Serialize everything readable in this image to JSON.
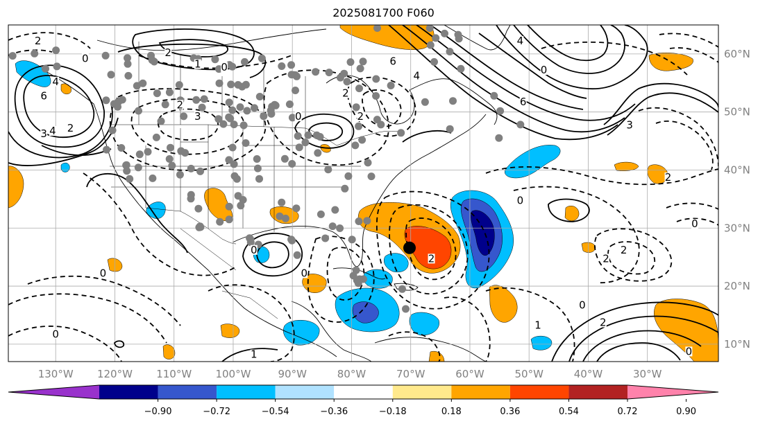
{
  "title": "2025081700 F060",
  "map": {
    "lon_range": [
      -138,
      -18
    ],
    "lat_range": [
      7,
      65
    ],
    "lon_ticks": [
      {
        "value": -130,
        "label": "130°W"
      },
      {
        "value": -120,
        "label": "120°W"
      },
      {
        "value": -110,
        "label": "110°W"
      },
      {
        "value": -100,
        "label": "100°W"
      },
      {
        "value": -90,
        "label": "90°W"
      },
      {
        "value": -80,
        "label": "80°W"
      },
      {
        "value": -70,
        "label": "70°W"
      },
      {
        "value": -60,
        "label": "60°W"
      },
      {
        "value": -50,
        "label": "50°W"
      },
      {
        "value": -40,
        "label": "40°W"
      },
      {
        "value": -30,
        "label": "30°W"
      }
    ],
    "lat_ticks": [
      {
        "value": 60,
        "label": "60°N"
      },
      {
        "value": 50,
        "label": "50°N"
      },
      {
        "value": 40,
        "label": "40°N"
      },
      {
        "value": 30,
        "label": "30°N"
      },
      {
        "value": 20,
        "label": "20°N"
      },
      {
        "value": 10,
        "label": "10°N"
      }
    ],
    "gridlines": true,
    "storm_center": {
      "lon": -70.2,
      "lat": 26.6
    },
    "contour_labels": [
      {
        "text": "2",
        "lon": -133,
        "lat": 62
      },
      {
        "text": "0",
        "lon": -125,
        "lat": 59
      },
      {
        "text": "4",
        "lon": -130,
        "lat": 55
      },
      {
        "text": "6",
        "lon": -132,
        "lat": 52.5
      },
      {
        "text": "3",
        "lon": -132,
        "lat": 46
      },
      {
        "text": "4",
        "lon": -130.5,
        "lat": 46.5
      },
      {
        "text": "2",
        "lon": -127.5,
        "lat": 47
      },
      {
        "text": "2",
        "lon": -111,
        "lat": 60
      },
      {
        "text": "1",
        "lon": -106,
        "lat": 58
      },
      {
        "text": "0",
        "lon": -101.5,
        "lat": 57.5
      },
      {
        "text": "2",
        "lon": -109,
        "lat": 51
      },
      {
        "text": "3",
        "lon": -106,
        "lat": 49
      },
      {
        "text": "0",
        "lon": -89,
        "lat": 49
      },
      {
        "text": "2",
        "lon": -81,
        "lat": 53
      },
      {
        "text": "2",
        "lon": -78.5,
        "lat": 49
      },
      {
        "text": "6",
        "lon": -73,
        "lat": 58.5
      },
      {
        "text": "4",
        "lon": -69,
        "lat": 56
      },
      {
        "text": "4",
        "lon": -51.5,
        "lat": 62
      },
      {
        "text": "0",
        "lon": -47.5,
        "lat": 57
      },
      {
        "text": "6",
        "lon": -51,
        "lat": 51.5
      },
      {
        "text": "3",
        "lon": -33,
        "lat": 47.5
      },
      {
        "text": "2",
        "lon": -26.5,
        "lat": 38.5
      },
      {
        "text": "0",
        "lon": -51.5,
        "lat": 34.5
      },
      {
        "text": "0",
        "lon": -22,
        "lat": 30.5
      },
      {
        "text": "2",
        "lon": -34,
        "lat": 26
      },
      {
        "text": "2",
        "lon": -37,
        "lat": 24.5
      },
      {
        "text": "0",
        "lon": -96.5,
        "lat": 26
      },
      {
        "text": "0",
        "lon": -88,
        "lat": 22
      },
      {
        "text": "2",
        "lon": -66.5,
        "lat": 24.5
      },
      {
        "text": "0",
        "lon": -122,
        "lat": 22
      },
      {
        "text": "0",
        "lon": -130,
        "lat": 11.5
      },
      {
        "text": "0",
        "lon": -41,
        "lat": 16.5
      },
      {
        "text": "2",
        "lon": -37.5,
        "lat": 13.5
      },
      {
        "text": "1",
        "lon": -48.5,
        "lat": 13
      },
      {
        "text": "0",
        "lon": -23,
        "lat": 8.5
      },
      {
        "text": "1",
        "lon": -96.5,
        "lat": 8
      }
    ]
  },
  "colorbar": {
    "colors": [
      "#9932cc",
      "#00008b",
      "#3657cd",
      "#00bfff",
      "#b0e2ff",
      "#ffffff",
      "#ffe98c",
      "#ffa500",
      "#ff4500",
      "#b22222",
      "#ff82ab"
    ],
    "tick_labels": [
      "−0.90",
      "−0.72",
      "−0.54",
      "−0.36",
      "−0.18",
      "0.18",
      "0.36",
      "0.54",
      "0.72",
      "0.90"
    ]
  }
}
